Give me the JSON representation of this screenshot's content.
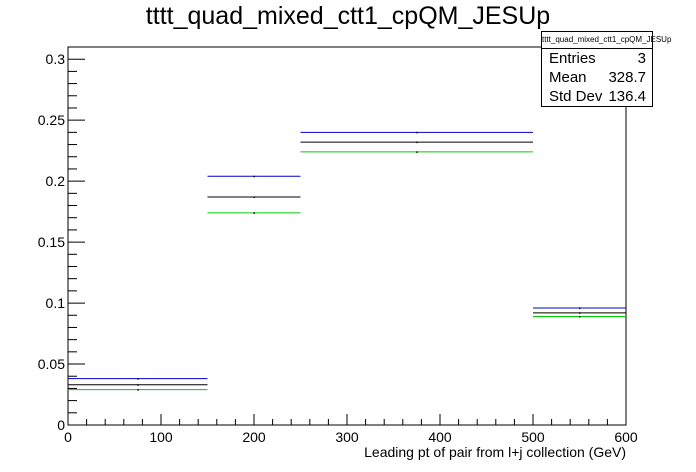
{
  "chart_data": {
    "type": "step",
    "title": "tttt_quad_mixed_ctt1_cpQM_JESUp",
    "xlabel": "Leading pt of pair from l+j collection (GeV)",
    "ylabel": "",
    "xlim": [
      0,
      600
    ],
    "ylim": [
      0,
      0.31
    ],
    "x_ticks": [
      0,
      100,
      200,
      300,
      400,
      500,
      600
    ],
    "x_tick_labels": [
      "0",
      "100",
      "200",
      "300",
      "400",
      "500",
      "600"
    ],
    "y_ticks": [
      0,
      0.05,
      0.1,
      0.15,
      0.2,
      0.25,
      0.3
    ],
    "y_tick_labels": [
      "0",
      "0.05",
      "0.1",
      "0.15",
      "0.2",
      "0.25",
      "0.3"
    ],
    "bin_edges": [
      0,
      150,
      250,
      500,
      600
    ],
    "series": [
      {
        "color": "#0000cc",
        "values": [
          0.038,
          0.204,
          0.24,
          0.096
        ]
      },
      {
        "color": "#000000",
        "values": [
          0.033,
          0.187,
          0.232,
          0.092
        ]
      },
      {
        "color": "#00cc00",
        "values": [
          0.029,
          0.174,
          0.224,
          0.089
        ]
      }
    ],
    "grid": false,
    "stats": {
      "title": "tttt_quad_mixed_ctt1_cpQM_JESUp",
      "rows": [
        {
          "label": "Entries",
          "value": "3"
        },
        {
          "label": "Mean",
          "value": "328.7"
        },
        {
          "label": "Std Dev",
          "value": "136.4"
        }
      ]
    }
  }
}
